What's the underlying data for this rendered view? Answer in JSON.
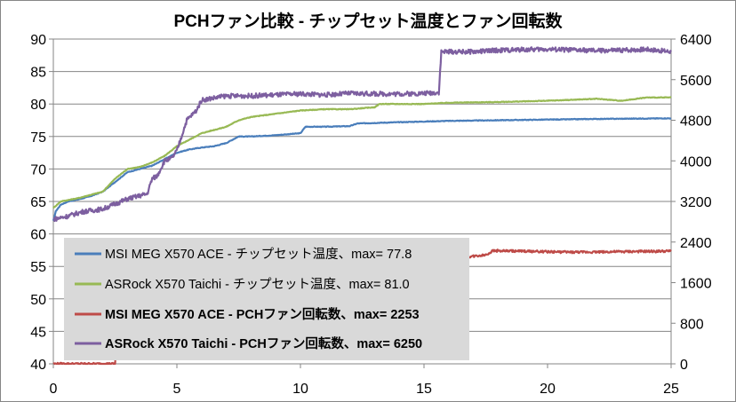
{
  "chart_data": {
    "type": "line",
    "title": "PCHファン比較 - チップセット温度とファン回転数",
    "xlabel": "",
    "ylabel": "",
    "y2label": "",
    "xlim": [
      0,
      25
    ],
    "ylim": [
      40,
      90
    ],
    "y2lim": [
      0,
      6400
    ],
    "x_ticks": [
      0,
      5,
      10,
      15,
      20,
      25
    ],
    "y_ticks": [
      40,
      45,
      50,
      55,
      60,
      65,
      70,
      75,
      80,
      85,
      90
    ],
    "y2_ticks": [
      0,
      800,
      1600,
      2400,
      3200,
      4000,
      4800,
      5600,
      6400
    ],
    "grid": "horizontal",
    "legend_position": "bottom-left",
    "colors": {
      "msi_temp": "#4a7ebb",
      "asrock_temp": "#98b954",
      "msi_fan": "#be4b48",
      "asrock_fan": "#7d5fa0"
    },
    "series": [
      {
        "name": "MSI MEG X570 ACE - チップセット温度、max= 77.8",
        "axis": "left",
        "color": "#4a7ebb",
        "bold": false,
        "points": [
          [
            0,
            62
          ],
          [
            0.1,
            63.5
          ],
          [
            0.3,
            64.5
          ],
          [
            0.6,
            65
          ],
          [
            1,
            65.3
          ],
          [
            1.5,
            65.8
          ],
          [
            2,
            66.5
          ],
          [
            2.5,
            68
          ],
          [
            3,
            69.5
          ],
          [
            3.5,
            70
          ],
          [
            4,
            70.5
          ],
          [
            4.5,
            71.5
          ],
          [
            5,
            72.5
          ],
          [
            5.5,
            73
          ],
          [
            6,
            73.3
          ],
          [
            6.5,
            73.5
          ],
          [
            7,
            74
          ],
          [
            7.5,
            75
          ],
          [
            8,
            75
          ],
          [
            9,
            75.2
          ],
          [
            10,
            75.5
          ],
          [
            10.2,
            76.5
          ],
          [
            11,
            76.5
          ],
          [
            12,
            76.6
          ],
          [
            12.3,
            77
          ],
          [
            14,
            77.2
          ],
          [
            15,
            77.3
          ],
          [
            16,
            77.4
          ],
          [
            18,
            77.5
          ],
          [
            20,
            77.6
          ],
          [
            22,
            77.7
          ],
          [
            25,
            77.8
          ]
        ]
      },
      {
        "name": "ASRock X570 Taichi - チップセット温度、max= 81.0",
        "axis": "left",
        "color": "#98b954",
        "bold": false,
        "points": [
          [
            0,
            64
          ],
          [
            0.3,
            65
          ],
          [
            1,
            65.5
          ],
          [
            1.5,
            66
          ],
          [
            2,
            66.5
          ],
          [
            2.5,
            68.5
          ],
          [
            3,
            70
          ],
          [
            3.5,
            70.3
          ],
          [
            4,
            71
          ],
          [
            4.5,
            72
          ],
          [
            5,
            73.5
          ],
          [
            5.5,
            74.5
          ],
          [
            6,
            75.5
          ],
          [
            6.5,
            76
          ],
          [
            7,
            76.5
          ],
          [
            7.5,
            77.5
          ],
          [
            8,
            78
          ],
          [
            9,
            78.5
          ],
          [
            10,
            79
          ],
          [
            11,
            79.2
          ],
          [
            12,
            79.2
          ],
          [
            13,
            79.5
          ],
          [
            13.2,
            80
          ],
          [
            15,
            80
          ],
          [
            16,
            80.2
          ],
          [
            18,
            80.3
          ],
          [
            20,
            80.5
          ],
          [
            22,
            80.8
          ],
          [
            23,
            80.5
          ],
          [
            24,
            81
          ],
          [
            25,
            81
          ]
        ]
      },
      {
        "name": "MSI MEG X570 ACE - PCHファン回転数、max= 2253",
        "axis": "right",
        "color": "#be4b48",
        "bold": true,
        "points": [
          [
            0,
            0
          ],
          [
            2.5,
            0
          ],
          [
            2.6,
            1150
          ],
          [
            3.5,
            1200
          ],
          [
            4.5,
            1300
          ],
          [
            5.5,
            1450
          ],
          [
            7,
            1580
          ],
          [
            8.5,
            1750
          ],
          [
            10,
            1850
          ],
          [
            12,
            1950
          ],
          [
            14,
            2000
          ],
          [
            15.5,
            2050
          ],
          [
            16,
            2080
          ],
          [
            17,
            2120
          ],
          [
            17.5,
            2150
          ],
          [
            17.8,
            2230
          ],
          [
            19,
            2220
          ],
          [
            21,
            2200
          ],
          [
            23,
            2210
          ],
          [
            25,
            2220
          ]
        ]
      },
      {
        "name": "ASRock X570 Taichi - PCHファン回転数、max= 6250",
        "axis": "right",
        "color": "#7d5fa0",
        "bold": true,
        "points": [
          [
            0,
            2850
          ],
          [
            0.5,
            2900
          ],
          [
            1.2,
            3000
          ],
          [
            2,
            3050
          ],
          [
            2.5,
            3150
          ],
          [
            3,
            3250
          ],
          [
            3.8,
            3350
          ],
          [
            4,
            3650
          ],
          [
            4.2,
            3700
          ],
          [
            4.5,
            4000
          ],
          [
            4.8,
            4050
          ],
          [
            5,
            4200
          ],
          [
            5.2,
            4500
          ],
          [
            5.4,
            4800
          ],
          [
            5.6,
            4900
          ],
          [
            5.8,
            5000
          ],
          [
            6,
            5200
          ],
          [
            7,
            5280
          ],
          [
            8,
            5280
          ],
          [
            9,
            5300
          ],
          [
            10,
            5320
          ],
          [
            11,
            5300
          ],
          [
            12,
            5330
          ],
          [
            13,
            5320
          ],
          [
            14,
            5320
          ],
          [
            15,
            5330
          ],
          [
            15.6,
            5350
          ],
          [
            15.7,
            6150
          ],
          [
            17,
            6150
          ],
          [
            18,
            6180
          ],
          [
            20,
            6200
          ],
          [
            22,
            6170
          ],
          [
            23,
            6180
          ],
          [
            24,
            6200
          ],
          [
            25,
            6150
          ]
        ]
      }
    ]
  }
}
